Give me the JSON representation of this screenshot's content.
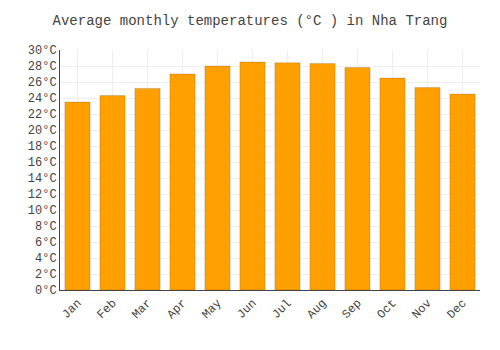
{
  "chart_data": {
    "type": "bar",
    "title": "Average monthly temperatures (°C ) in Nha Trang",
    "categories": [
      "Jan",
      "Feb",
      "Mar",
      "Apr",
      "May",
      "Jun",
      "Jul",
      "Aug",
      "Sep",
      "Oct",
      "Nov",
      "Dec"
    ],
    "values": [
      23.5,
      24.3,
      25.2,
      27.0,
      28.0,
      28.5,
      28.4,
      28.3,
      27.8,
      26.5,
      25.3,
      24.5
    ],
    "color": "#FFA000",
    "ylim": [
      0,
      30
    ],
    "yticks": [
      {
        "value": 0,
        "label": "0°C"
      },
      {
        "value": 2,
        "label": "2°C"
      },
      {
        "value": 4,
        "label": "4°C"
      },
      {
        "value": 6,
        "label": "6°C"
      },
      {
        "value": 8,
        "label": "8°C"
      },
      {
        "value": 10,
        "label": "10°C"
      },
      {
        "value": 12,
        "label": "12°C"
      },
      {
        "value": 14,
        "label": "14°C"
      },
      {
        "value": 16,
        "label": "16°C"
      },
      {
        "value": 18,
        "label": "18°C"
      },
      {
        "value": 20,
        "label": "20°C"
      },
      {
        "value": 22,
        "label": "22°C"
      },
      {
        "value": 24,
        "label": "24°C"
      },
      {
        "value": 26,
        "label": "26°C"
      },
      {
        "value": 28,
        "label": "28°C"
      },
      {
        "value": 30,
        "label": "30°C"
      }
    ],
    "grid": true
  }
}
